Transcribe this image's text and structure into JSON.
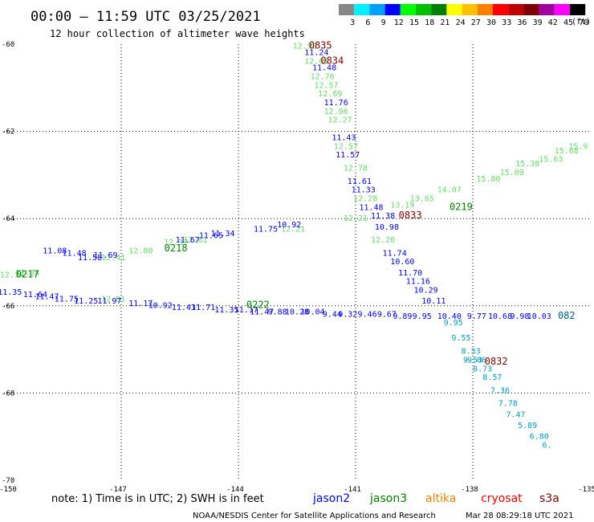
{
  "header": {
    "title": "00:00 – 11:59 UTC 03/25/2021",
    "subtitle": "12 hour collection of altimeter wave heights"
  },
  "colorbar": {
    "colors": [
      "#888888",
      "#00f0ff",
      "#00a0ff",
      "#0000ff",
      "#00ff00",
      "#00c000",
      "#008000",
      "#ffff00",
      "#ffc000",
      "#ff8000",
      "#ff0000",
      "#c00000",
      "#800000",
      "#a000a0",
      "#ff00ff",
      "#000000"
    ],
    "labels": [
      "3",
      "6",
      "9",
      "12",
      "15",
      "18",
      "21",
      "24",
      "27",
      "30",
      "33",
      "36",
      "39",
      "42",
      "45",
      "70"
    ],
    "unit": "(ft)"
  },
  "footer": {
    "note": "note:  1) Time is in UTC;  2) SWH is in feet",
    "credit": "NOAA/NESDIS Center for Satellite Applications and Research",
    "timestamp": "Mar 28 08:29:18 UTC 2021"
  },
  "satellites": [
    {
      "name": "jason2",
      "color": "#0000ff"
    },
    {
      "name": "jason3",
      "color": "#008000"
    },
    {
      "name": "altika",
      "color": "#ff8000"
    },
    {
      "name": "cryosat",
      "color": "#ff0000"
    },
    {
      "name": "s3a",
      "color": "#800000"
    }
  ],
  "chart_data": {
    "type": "scatter",
    "title": "00:00 – 11:59 UTC 03/25/2021",
    "xlim": [
      -150,
      -135
    ],
    "ylim": [
      -70,
      -60
    ],
    "x_ticks": [
      "-150",
      "-147",
      "-144",
      "-141",
      "-138",
      "-135"
    ],
    "y_ticks": [
      "-60",
      "-62",
      "-64",
      "-66",
      "-68",
      "-70"
    ],
    "grid": true,
    "series": [
      {
        "name": "jason3",
        "color_low": "#66dd66",
        "points": [
          {
            "x": -142.3,
            "y": -60.1,
            "v": "12.92"
          },
          {
            "x": -142.0,
            "y": -60.45,
            "v": "12.61"
          },
          {
            "x": -141.85,
            "y": -60.8,
            "v": "12.76"
          },
          {
            "x": -141.75,
            "y": -61.0,
            "v": "12.57"
          },
          {
            "x": -141.65,
            "y": -61.2,
            "v": "12.69"
          },
          {
            "x": -141.5,
            "y": -61.6,
            "v": "12.06"
          },
          {
            "x": -141.4,
            "y": -61.8,
            "v": "12.27"
          },
          {
            "x": -141.25,
            "y": -62.4,
            "v": "12.57"
          },
          {
            "x": -141.0,
            "y": -62.9,
            "v": "12.78"
          },
          {
            "x": -140.75,
            "y": -63.6,
            "v": "12.28"
          },
          {
            "x": -140.3,
            "y": -64.55,
            "v": "12.20"
          },
          {
            "x": -149.8,
            "y": -65.35,
            "v": "12.14"
          },
          {
            "x": -149.4,
            "y": -65.3,
            "v": "12.34"
          },
          {
            "x": -147.2,
            "y": -64.95,
            "v": "12.41"
          },
          {
            "x": -146.5,
            "y": -64.8,
            "v": "12.80"
          },
          {
            "x": -145.6,
            "y": -64.6,
            "v": "12.37"
          },
          {
            "x": -145.1,
            "y": -64.55,
            "v": "12.61"
          },
          {
            "x": -142.6,
            "y": -64.3,
            "v": "12.21"
          },
          {
            "x": -141.0,
            "y": -64.05,
            "v": "12.21"
          },
          {
            "x": -139.8,
            "y": -63.75,
            "v": "13.19"
          },
          {
            "x": -139.3,
            "y": -63.6,
            "v": "13.65"
          },
          {
            "x": -138.6,
            "y": -63.4,
            "v": "14.07"
          },
          {
            "x": -137.6,
            "y": -63.15,
            "v": "15.80"
          },
          {
            "x": -137.0,
            "y": -63.0,
            "v": "15.09"
          },
          {
            "x": -136.6,
            "y": -62.8,
            "v": "15.38"
          },
          {
            "x": -136.0,
            "y": -62.7,
            "v": "15.63"
          },
          {
            "x": -135.6,
            "y": -62.5,
            "v": "15.68"
          },
          {
            "x": -135.3,
            "y": -62.4,
            "v": "15.9"
          },
          {
            "x": -147.2,
            "y": -65.9,
            "v": "12.01"
          }
        ]
      },
      {
        "name": "jason2",
        "points": [
          {
            "x": -142.0,
            "y": -60.25,
            "v": "11.24"
          },
          {
            "x": -141.8,
            "y": -60.6,
            "v": "11.48"
          },
          {
            "x": -141.5,
            "y": -61.4,
            "v": "11.76"
          },
          {
            "x": -141.3,
            "y": -62.2,
            "v": "11.43"
          },
          {
            "x": -141.2,
            "y": -62.6,
            "v": "11.57"
          },
          {
            "x": -140.9,
            "y": -63.2,
            "v": "11.61"
          },
          {
            "x": -140.8,
            "y": -63.4,
            "v": "11.33"
          },
          {
            "x": -140.6,
            "y": -63.8,
            "v": "11.48"
          },
          {
            "x": -140.3,
            "y": -64.0,
            "v": "11.38"
          },
          {
            "x": -140.2,
            "y": -64.25,
            "v": "10.98"
          },
          {
            "x": -140.0,
            "y": -64.85,
            "v": "11.74"
          },
          {
            "x": -139.8,
            "y": -65.05,
            "v": "10.60"
          },
          {
            "x": -139.6,
            "y": -65.3,
            "v": "11.70"
          },
          {
            "x": -139.4,
            "y": -65.5,
            "v": "11.16"
          },
          {
            "x": -139.2,
            "y": -65.7,
            "v": "10.29"
          },
          {
            "x": -139.0,
            "y": -65.95,
            "v": "10.11"
          },
          {
            "x": -149.85,
            "y": -65.75,
            "v": "11.35"
          },
          {
            "x": -149.2,
            "y": -65.8,
            "v": "11.64"
          },
          {
            "x": -148.9,
            "y": -65.85,
            "v": "11.47"
          },
          {
            "x": -148.4,
            "y": -65.9,
            "v": "11.75"
          },
          {
            "x": -147.9,
            "y": -65.95,
            "v": "11.25"
          },
          {
            "x": -147.3,
            "y": -65.95,
            "v": "11.97"
          },
          {
            "x": -146.5,
            "y": -66.0,
            "v": "11.17"
          },
          {
            "x": -146.0,
            "y": -66.05,
            "v": "10.92"
          },
          {
            "x": -145.4,
            "y": -66.1,
            "v": "11.43"
          },
          {
            "x": -144.9,
            "y": -66.1,
            "v": "11.71"
          },
          {
            "x": -144.3,
            "y": -66.15,
            "v": "11.35"
          },
          {
            "x": -143.8,
            "y": -66.15,
            "v": "11.17"
          },
          {
            "x": -143.4,
            "y": -66.2,
            "v": "11.47"
          },
          {
            "x": -143.0,
            "y": -66.2,
            "v": "9.88"
          },
          {
            "x": -142.5,
            "y": -66.2,
            "v": "10.28"
          },
          {
            "x": -142.1,
            "y": -66.2,
            "v": "10.04"
          },
          {
            "x": -141.6,
            "y": -66.25,
            "v": "9.44"
          },
          {
            "x": -141.2,
            "y": -66.25,
            "v": "9.32"
          },
          {
            "x": -140.7,
            "y": -66.25,
            "v": "9.46"
          },
          {
            "x": -140.2,
            "y": -66.25,
            "v": "9.67"
          },
          {
            "x": -139.8,
            "y": -66.3,
            "v": "9.89"
          },
          {
            "x": -139.3,
            "y": -66.3,
            "v": "9.95"
          },
          {
            "x": -138.6,
            "y": -66.3,
            "v": "10.40"
          },
          {
            "x": -137.9,
            "y": -66.3,
            "v": "9.77"
          },
          {
            "x": -137.3,
            "y": -66.3,
            "v": "10.68"
          },
          {
            "x": -136.8,
            "y": -66.3,
            "v": "9.98"
          },
          {
            "x": -136.3,
            "y": -66.3,
            "v": "10.03"
          },
          {
            "x": -148.7,
            "y": -64.8,
            "v": "11.08"
          },
          {
            "x": -148.2,
            "y": -64.85,
            "v": "11.48"
          },
          {
            "x": -147.8,
            "y": -64.95,
            "v": "11.58"
          },
          {
            "x": -147.4,
            "y": -64.9,
            "v": "11.69"
          },
          {
            "x": -145.3,
            "y": -64.55,
            "v": "11.67"
          },
          {
            "x": -144.7,
            "y": -64.45,
            "v": "11.65"
          },
          {
            "x": -144.4,
            "y": -64.4,
            "v": "11.34"
          },
          {
            "x": -143.3,
            "y": -64.3,
            "v": "11.75"
          },
          {
            "x": -142.7,
            "y": -64.2,
            "v": "10.92"
          }
        ]
      },
      {
        "name": "s3a",
        "color": "#00a0c0",
        "points": [
          {
            "x": -138.5,
            "y": -66.45,
            "v": "9.95"
          },
          {
            "x": -138.3,
            "y": -66.8,
            "v": "9.55"
          },
          {
            "x": -138.05,
            "y": -67.1,
            "v": "8.33"
          },
          {
            "x": -137.9,
            "y": -67.3,
            "v": "9.06"
          },
          {
            "x": -137.75,
            "y": -67.5,
            "v": "8.73"
          },
          {
            "x": -137.5,
            "y": -67.7,
            "v": "8.57"
          },
          {
            "x": -137.3,
            "y": -68.0,
            "v": "7.36"
          },
          {
            "x": -137.1,
            "y": -68.3,
            "v": "7.78"
          },
          {
            "x": -136.9,
            "y": -68.55,
            "v": "7.47"
          },
          {
            "x": -136.6,
            "y": -68.8,
            "v": "5.89"
          },
          {
            "x": -136.3,
            "y": -69.05,
            "v": "6.80"
          },
          {
            "x": -136.1,
            "y": -69.25,
            "v": "6."
          },
          {
            "x": -138.0,
            "y": -67.3,
            "v": "9.53"
          }
        ]
      }
    ],
    "tags": [
      {
        "x": -141.9,
        "y": -60.1,
        "v": "0835",
        "color": "#800000"
      },
      {
        "x": -141.6,
        "y": -60.45,
        "v": "0834",
        "color": "#800000"
      },
      {
        "x": -139.6,
        "y": -64.0,
        "v": "0833",
        "color": "#800000"
      },
      {
        "x": -138.3,
        "y": -63.8,
        "v": "0219",
        "color": "#008000"
      },
      {
        "x": -145.6,
        "y": -64.75,
        "v": "0218",
        "color": "#008000"
      },
      {
        "x": -149.4,
        "y": -65.35,
        "v": "0217",
        "color": "#008000"
      },
      {
        "x": -143.5,
        "y": -66.05,
        "v": "0222",
        "color": "#008000"
      },
      {
        "x": -137.4,
        "y": -67.35,
        "v": "0832",
        "color": "#800000"
      },
      {
        "x": -135.6,
        "y": -66.3,
        "v": "082",
        "color": "#00608a"
      }
    ]
  }
}
